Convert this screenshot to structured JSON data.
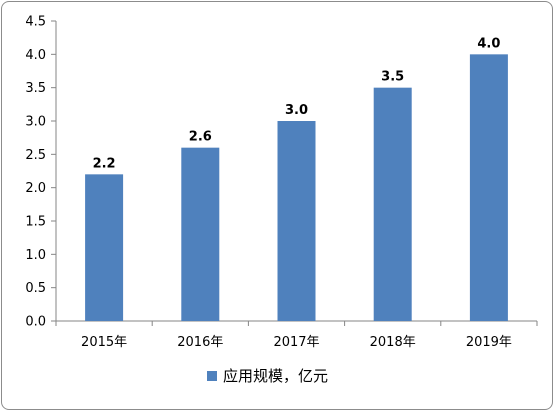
{
  "chart_data": {
    "type": "bar",
    "categories": [
      "2015年",
      "2016年",
      "2017年",
      "2018年",
      "2019年"
    ],
    "series": [
      {
        "name": "应用规模，亿元",
        "values": [
          2.2,
          2.6,
          3.0,
          3.5,
          4.0
        ],
        "color": "#4f81bd"
      }
    ],
    "data_labels": [
      "2.2",
      "2.6",
      "3.0",
      "3.5",
      "4.0"
    ],
    "yticks": [
      "0.0",
      "0.5",
      "1.0",
      "1.5",
      "2.0",
      "2.5",
      "3.0",
      "3.5",
      "4.0",
      "4.5"
    ],
    "ylim": [
      0,
      4.5
    ],
    "grid": false,
    "legend_position": "bottom"
  }
}
